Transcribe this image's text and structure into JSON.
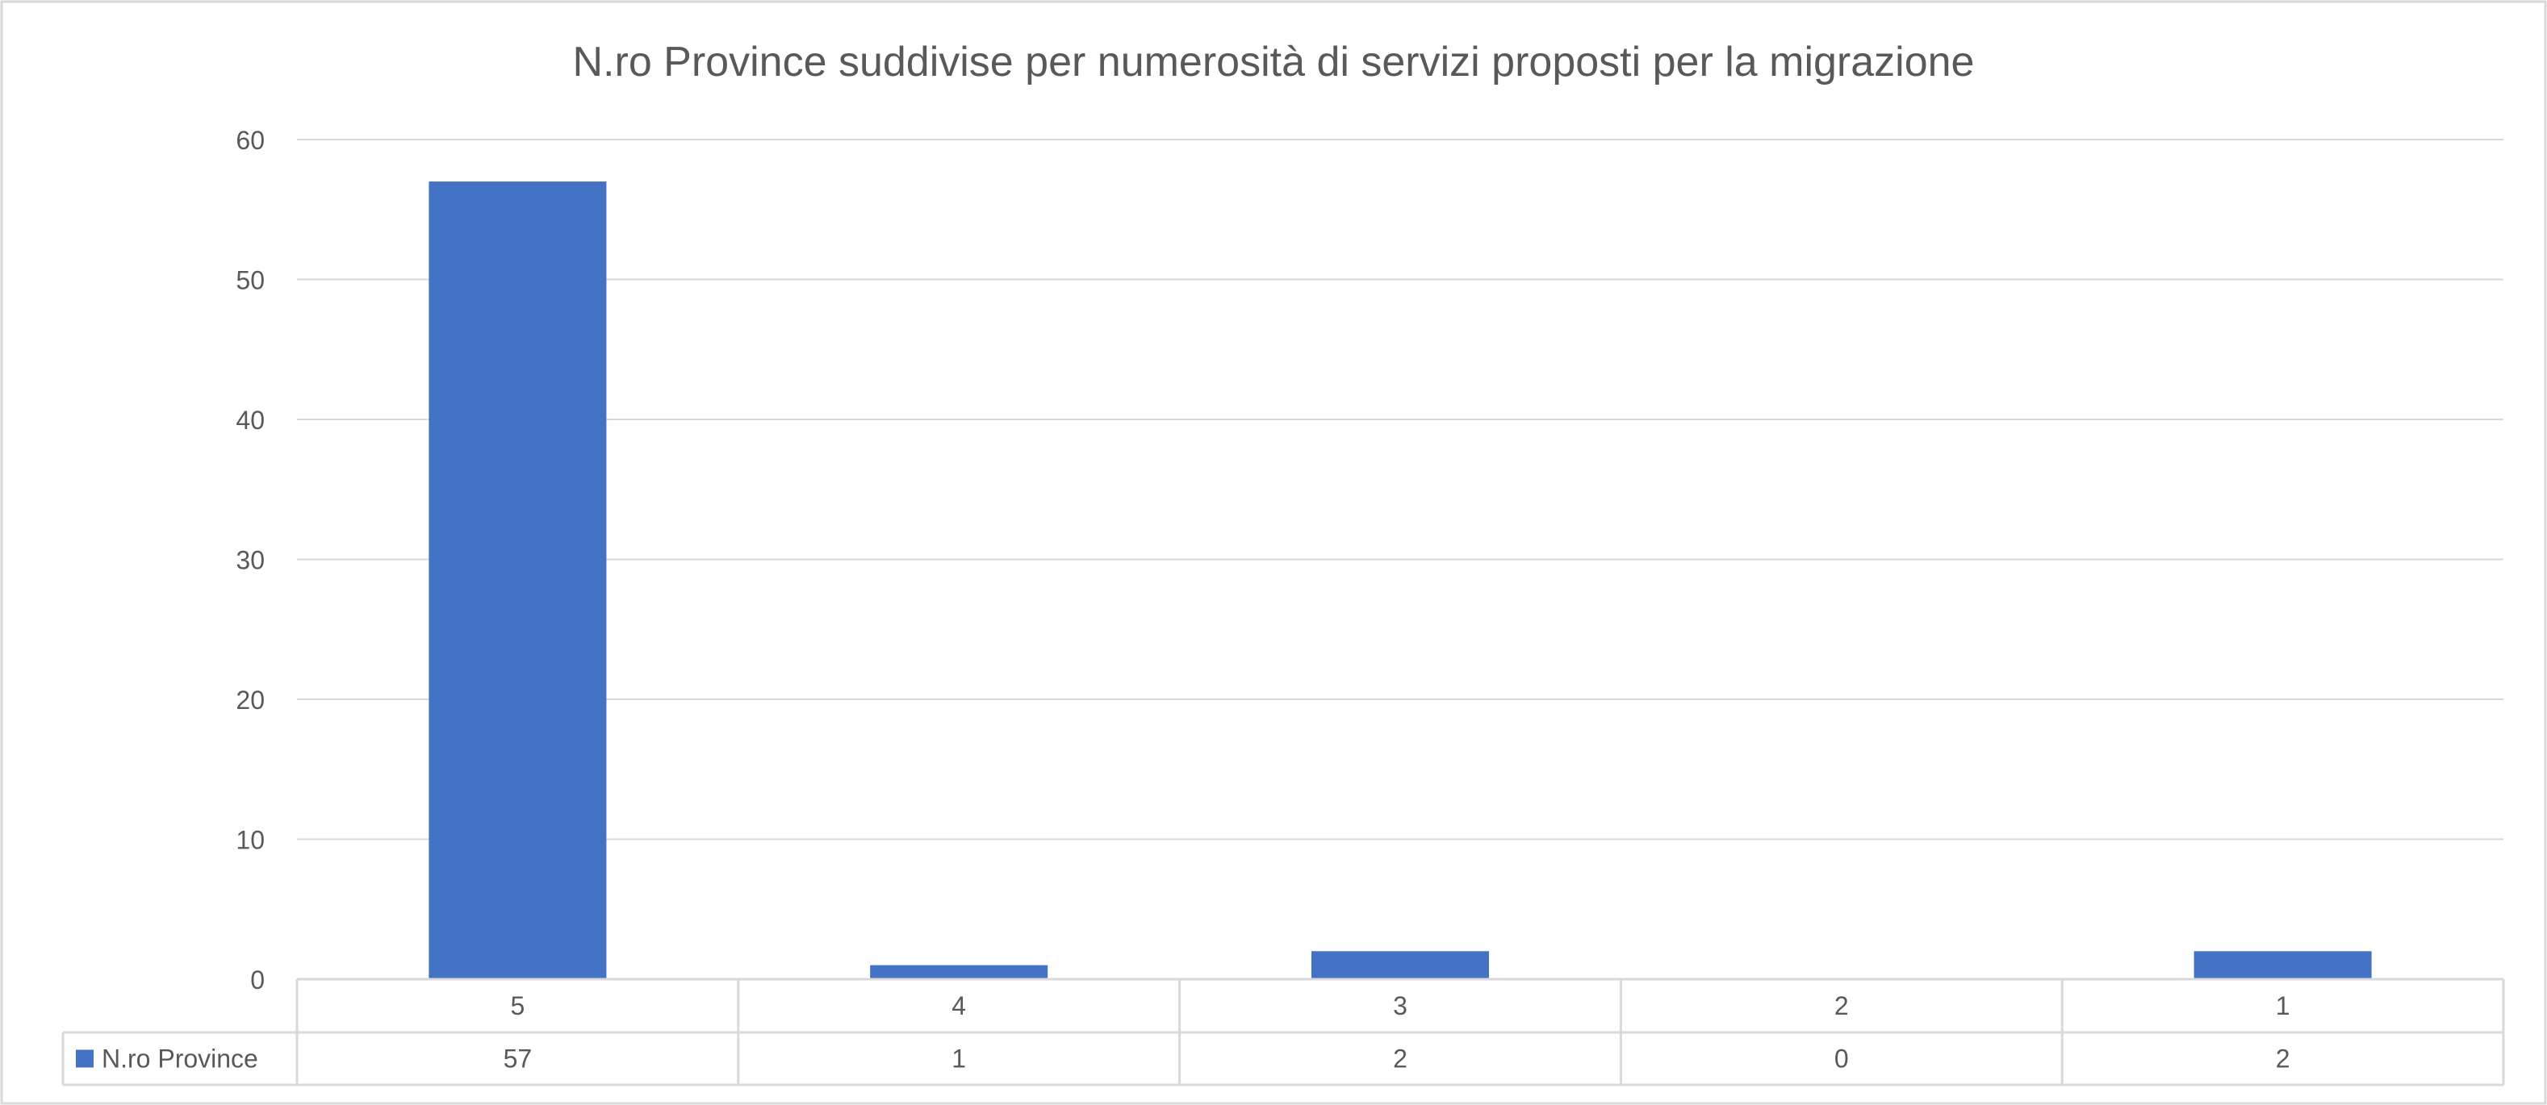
{
  "chart_data": {
    "type": "bar",
    "title": "N.ro Province suddivise per numerosità di servizi proposti per la migrazione",
    "categories": [
      "5",
      "4",
      "3",
      "2",
      "1"
    ],
    "series": [
      {
        "name": "N.ro Province",
        "values": [
          57,
          1,
          2,
          0,
          2
        ],
        "color": "#4472C4"
      }
    ],
    "xlabel": "",
    "ylabel": "",
    "ylim": [
      0,
      60
    ],
    "yticks": [
      0,
      10,
      20,
      30,
      40,
      50,
      60
    ],
    "grid": true,
    "legend": "data-table",
    "data_table": true
  }
}
